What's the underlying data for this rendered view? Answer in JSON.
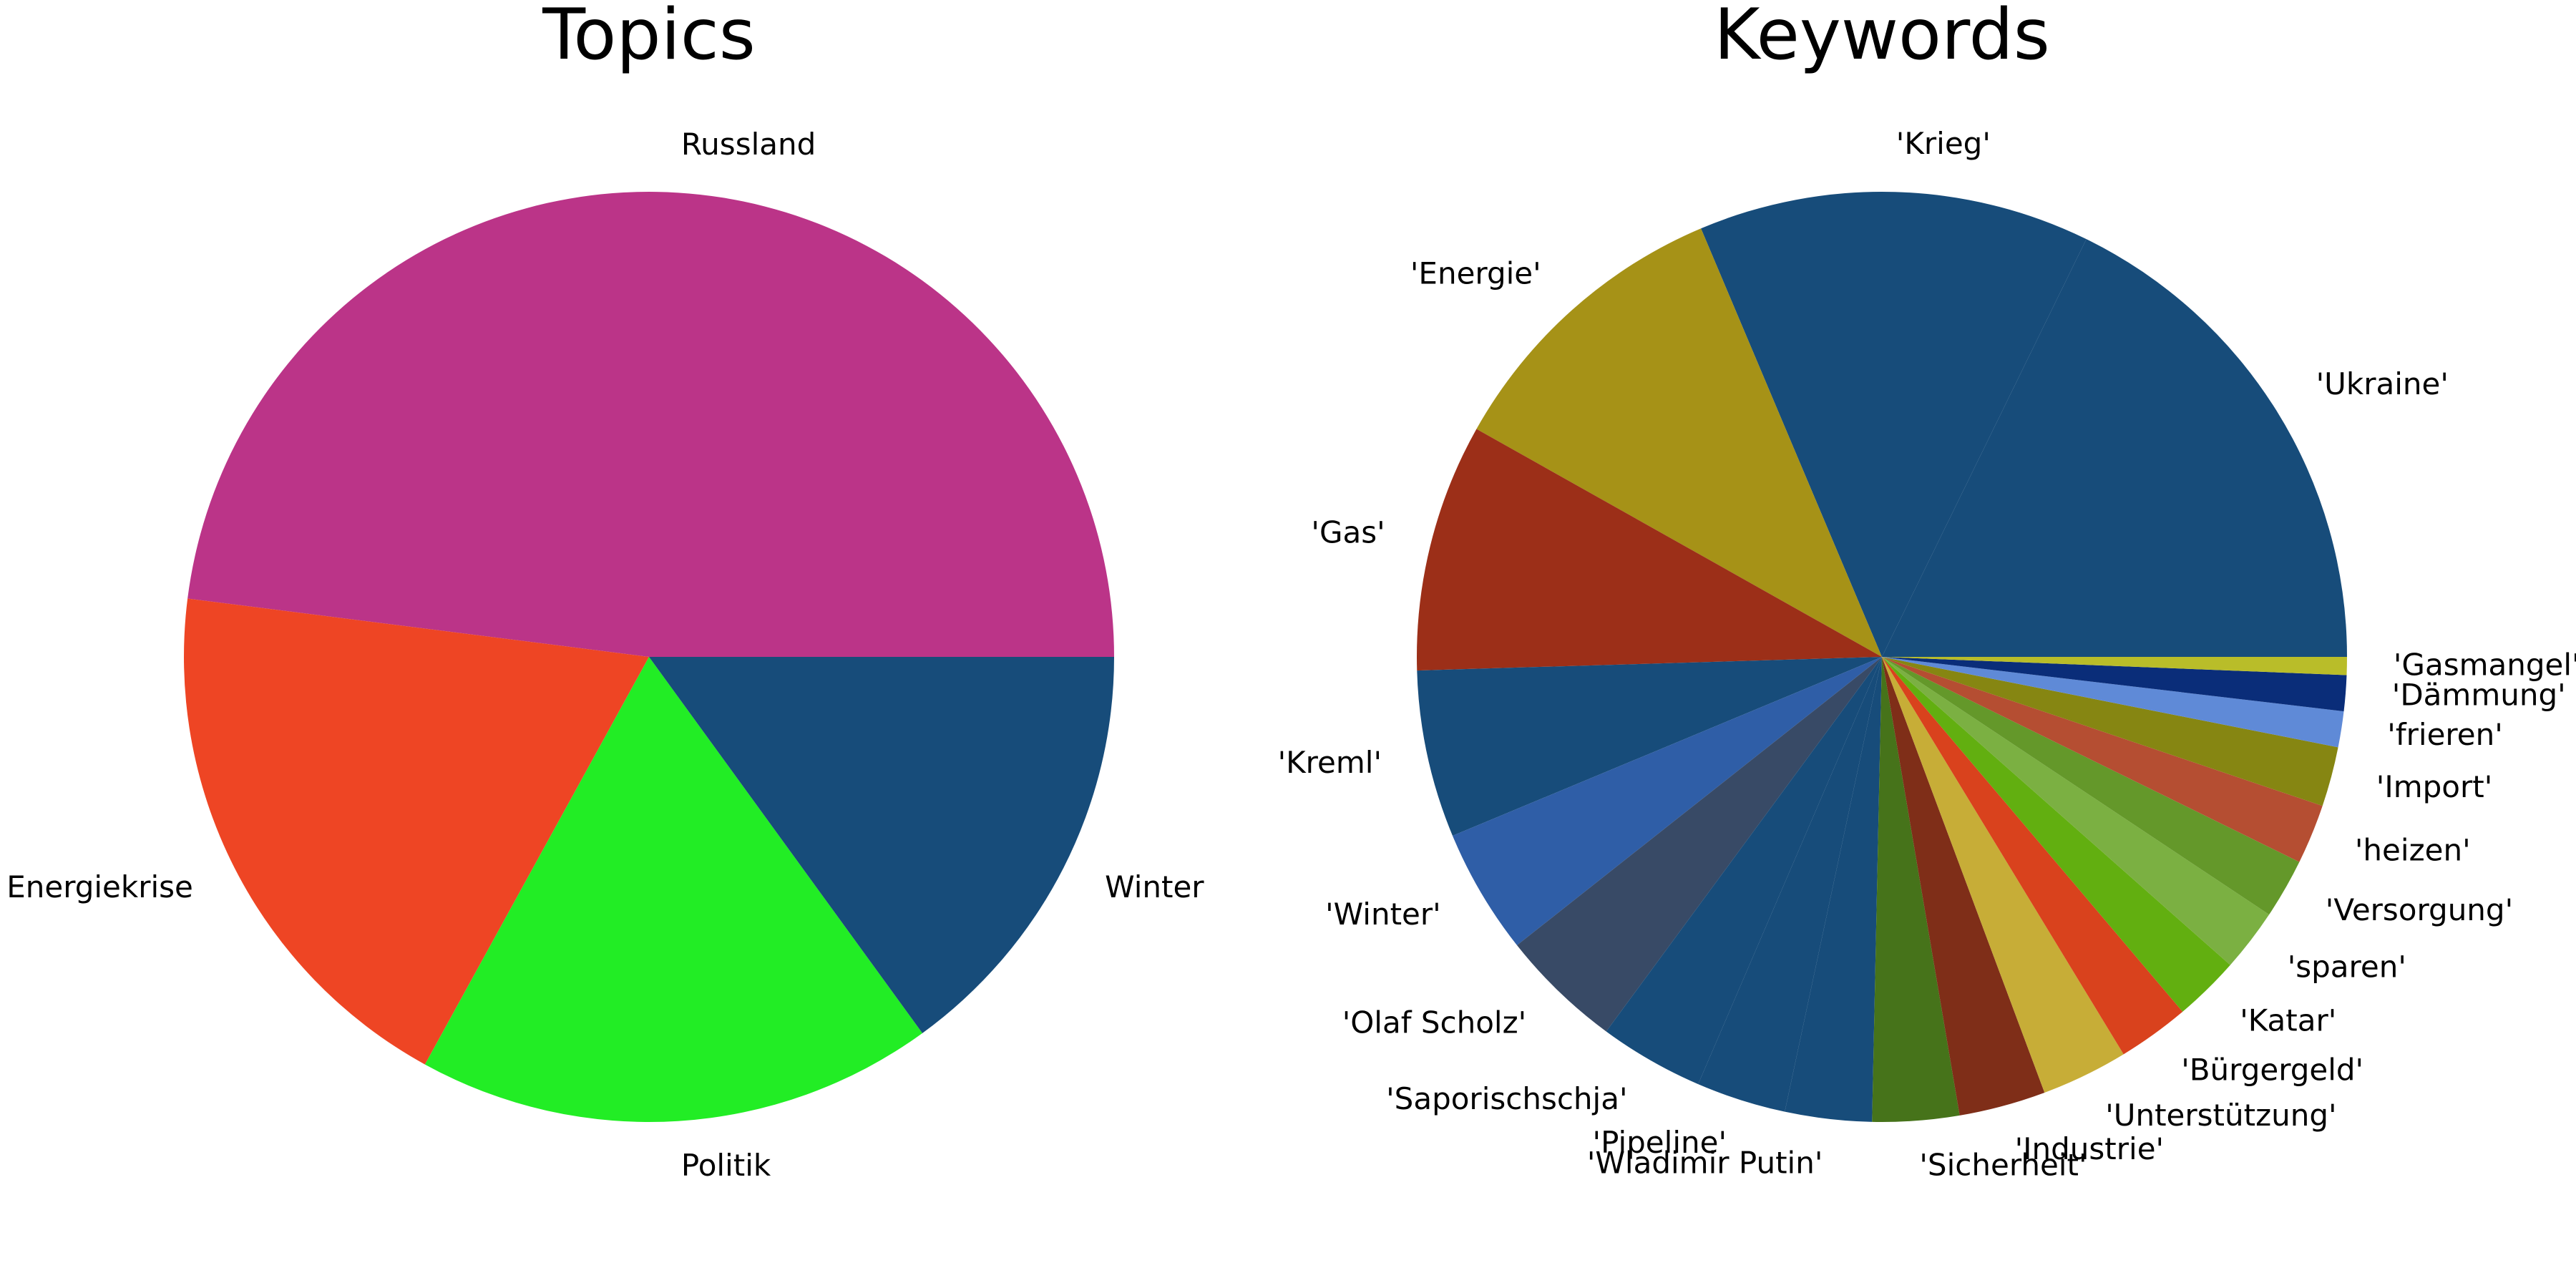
{
  "chart_data": [
    {
      "type": "pie",
      "title": "Topics",
      "start_angle_deg": 0,
      "direction": "counterclockwise",
      "slices": [
        {
          "label": "Russland",
          "value": 48,
          "color": "#bb3488"
        },
        {
          "label": "Energiekrise",
          "value": 19,
          "color": "#ee4524"
        },
        {
          "label": "Politik",
          "value": 18,
          "color": "#22ed25"
        },
        {
          "label": "Winter",
          "value": 15,
          "color": "#174c7a"
        }
      ]
    },
    {
      "type": "pie",
      "title": "Keywords",
      "start_angle_deg": 0,
      "direction": "counterclockwise",
      "slices": [
        {
          "label": "'Ukraine'",
          "value": 17.1,
          "color": "#174c7a"
        },
        {
          "label": "'Krieg'",
          "value": 13.1,
          "color": "#174c7a"
        },
        {
          "label": "'Energie'",
          "value": 10.1,
          "color": "#a69217"
        },
        {
          "label": "'Gas'",
          "value": 8.3,
          "color": "#9c2f18"
        },
        {
          "label": "'Kreml'",
          "value": 5.6,
          "color": "#174c7a"
        },
        {
          "label": "'Winter'",
          "value": 4.2,
          "color": "#2f5ea7"
        },
        {
          "label": "'Olaf Scholz'",
          "value": 4.1,
          "color": "#384a66"
        },
        {
          "label": "'Saporischschja'",
          "value": 3.5,
          "color": "#174c7a"
        },
        {
          "label": "'Pipeline'",
          "value": 3.0,
          "color": "#174c7a"
        },
        {
          "label": "'Wladimir Putin'",
          "value": 2.9,
          "color": "#174c7a"
        },
        {
          "label": "'Sicherheit'",
          "value": 2.9,
          "color": "#46731a"
        },
        {
          "label": "'Industrie'",
          "value": 2.9,
          "color": "#7f2e18"
        },
        {
          "label": "'Unterstützung'",
          "value": 2.9,
          "color": "#c7ad37"
        },
        {
          "label": "'Bürgergeld'",
          "value": 2.4,
          "color": "#d9421d"
        },
        {
          "label": "'Katar'",
          "value": 2.2,
          "color": "#62af10"
        },
        {
          "label": "'sparen'",
          "value": 2.1,
          "color": "#7bb042"
        },
        {
          "label": "'Versorgung'",
          "value": 2.0,
          "color": "#64982a"
        },
        {
          "label": "'heizen'",
          "value": 2.0,
          "color": "#b54e32"
        },
        {
          "label": "'Import'",
          "value": 2.0,
          "color": "#868612"
        },
        {
          "label": "'frieren'",
          "value": 1.2,
          "color": "#5f8ad7"
        },
        {
          "label": "'Dämmung'",
          "value": 1.2,
          "color": "#0a2d79"
        },
        {
          "label": "'Gasmangel'",
          "value": 0.6,
          "color": "#b9bd29"
        }
      ]
    }
  ]
}
